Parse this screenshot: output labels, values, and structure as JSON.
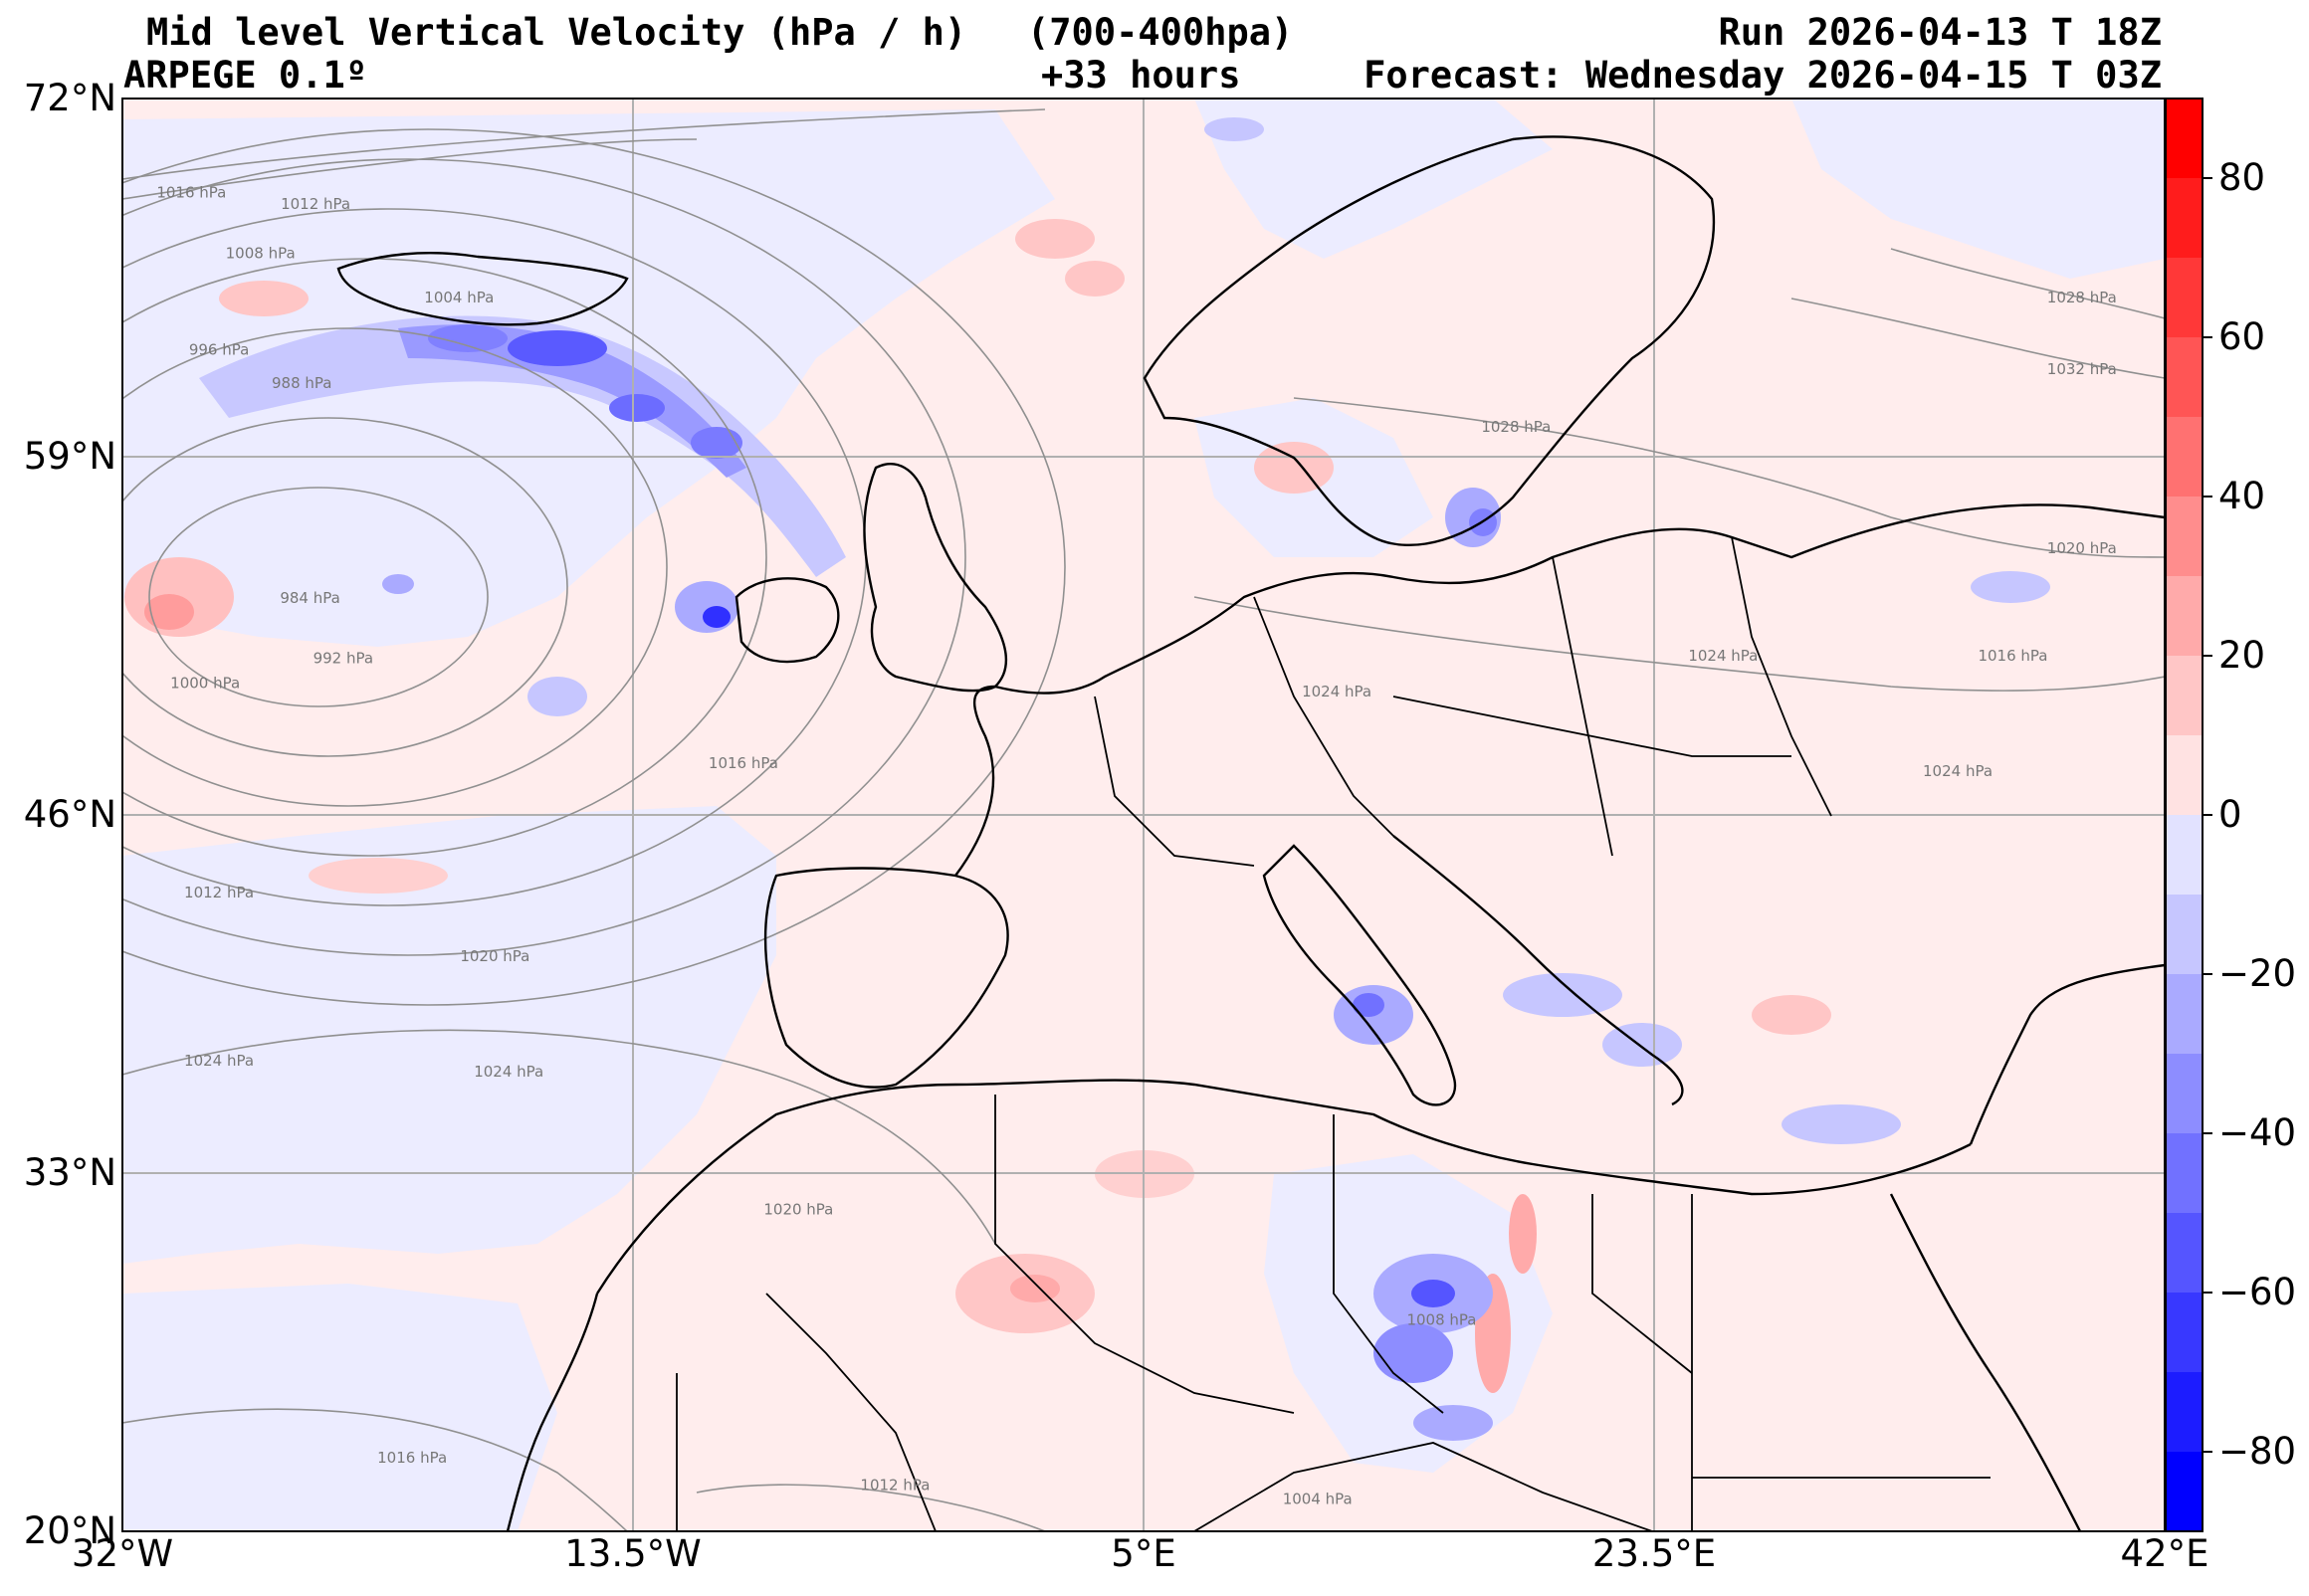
{
  "header": {
    "title": "Mid level Vertical Velocity (hPa / h)",
    "level_range": "(700-400hpa)",
    "model": "ARPEGE 0.1º",
    "lead_time": "+33 hours",
    "run": "Run 2026-04-13 T 18Z",
    "forecast": "Forecast: Wednesday 2026-04-15 T 03Z"
  },
  "map": {
    "extent": {
      "lon_min": -32,
      "lon_max": 42,
      "lat_min": 20,
      "lat_max": 72
    },
    "lat_ticks": [
      {
        "value": 72,
        "label": "72°N"
      },
      {
        "value": 59,
        "label": "59°N"
      },
      {
        "value": 46,
        "label": "46°N"
      },
      {
        "value": 33,
        "label": "33°N"
      },
      {
        "value": 20,
        "label": "20°N"
      }
    ],
    "lon_ticks": [
      {
        "value": -32,
        "label": "32°W"
      },
      {
        "value": -13.5,
        "label": "13.5°W"
      },
      {
        "value": 5,
        "label": "5°E"
      },
      {
        "value": 23.5,
        "label": "23.5°E"
      },
      {
        "value": 42,
        "label": "42°E"
      }
    ],
    "grid": true,
    "isobar_labels": [
      {
        "text": "1016 hPa",
        "lon": -29.5,
        "lat": 68.4
      },
      {
        "text": "1012 hPa",
        "lon": -25,
        "lat": 68.0
      },
      {
        "text": "1008 hPa",
        "lon": -27,
        "lat": 66.2
      },
      {
        "text": "1004 hPa",
        "lon": -19.8,
        "lat": 64.6
      },
      {
        "text": "996 hPa",
        "lon": -28.5,
        "lat": 62.7
      },
      {
        "text": "988 hPa",
        "lon": -25.5,
        "lat": 61.5
      },
      {
        "text": "984 hPa",
        "lon": -25.2,
        "lat": 53.7
      },
      {
        "text": "992 hPa",
        "lon": -24,
        "lat": 51.5
      },
      {
        "text": "1000 hPa",
        "lon": -29,
        "lat": 50.6
      },
      {
        "text": "1012 hPa",
        "lon": -28.5,
        "lat": 43.0
      },
      {
        "text": "1016 hPa",
        "lon": -9.5,
        "lat": 47.7
      },
      {
        "text": "1020 hPa",
        "lon": -18.5,
        "lat": 40.7
      },
      {
        "text": "1024 hPa",
        "lon": -28.5,
        "lat": 36.9
      },
      {
        "text": "1024 hPa",
        "lon": -18,
        "lat": 36.5
      },
      {
        "text": "1020 hPa",
        "lon": -7.5,
        "lat": 31.5
      },
      {
        "text": "1016 hPa",
        "lon": -21.5,
        "lat": 22.5
      },
      {
        "text": "1012 hPa",
        "lon": -4,
        "lat": 21.5
      },
      {
        "text": "1004 hPa",
        "lon": 11.3,
        "lat": 21.0
      },
      {
        "text": "1008 hPa",
        "lon": 15.8,
        "lat": 27.5
      },
      {
        "text": "1024 hPa",
        "lon": 12,
        "lat": 50.3
      },
      {
        "text": "1028 hPa",
        "lon": 18.5,
        "lat": 59.9
      },
      {
        "text": "1024 hPa",
        "lon": 26,
        "lat": 51.6
      },
      {
        "text": "1024 hPa",
        "lon": 34.5,
        "lat": 47.4
      },
      {
        "text": "1016 hPa",
        "lon": 36.5,
        "lat": 51.6
      },
      {
        "text": "1020 hPa",
        "lon": 39,
        "lat": 55.5
      },
      {
        "text": "1032 hPa",
        "lon": 39,
        "lat": 62.0
      },
      {
        "text": "1028 hPa",
        "lon": 39,
        "lat": 64.6
      }
    ]
  },
  "colorbar": {
    "vmin": -90,
    "vmax": 90,
    "levels": [
      -90,
      -80,
      -70,
      -60,
      -50,
      -40,
      -30,
      -20,
      -10,
      0,
      10,
      20,
      30,
      40,
      50,
      60,
      70,
      80,
      90
    ],
    "colors": [
      "#0000ff",
      "#1c1cff",
      "#3838ff",
      "#5555ff",
      "#7171ff",
      "#8d8dff",
      "#aaaaff",
      "#c6c6ff",
      "#e2e2ff",
      "#ffe2e2",
      "#ffc6c6",
      "#ffaaaa",
      "#ff8d8d",
      "#ff7171",
      "#ff5555",
      "#ff3838",
      "#ff1c1c",
      "#ff0000"
    ],
    "ticks": [
      {
        "value": 80,
        "label": "80"
      },
      {
        "value": 60,
        "label": "60"
      },
      {
        "value": 40,
        "label": "40"
      },
      {
        "value": 20,
        "label": "20"
      },
      {
        "value": 0,
        "label": "0"
      },
      {
        "value": -20,
        "label": "−20"
      },
      {
        "value": -40,
        "label": "−40"
      },
      {
        "value": -60,
        "label": "−60"
      },
      {
        "value": -80,
        "label": "−80"
      }
    ]
  }
}
